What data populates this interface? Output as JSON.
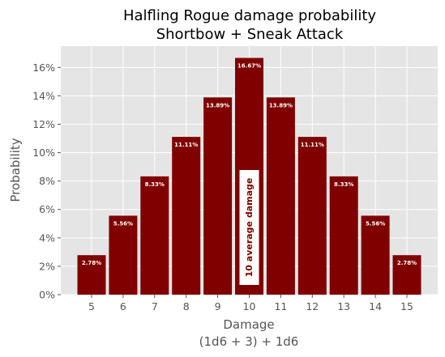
{
  "chart_data": {
    "type": "bar",
    "title": "Halfling Rogue damage probability",
    "subtitle": "Shortbow + Sneak Attack",
    "xlabel": "Damage",
    "xlabel_sub": "(1d6 + 3) + 1d6",
    "ylabel": "Probability",
    "categories": [
      "5",
      "6",
      "7",
      "8",
      "9",
      "10",
      "11",
      "12",
      "13",
      "14",
      "15"
    ],
    "values": [
      2.78,
      5.56,
      8.33,
      11.11,
      13.89,
      16.67,
      13.89,
      11.11,
      8.33,
      5.56,
      2.78
    ],
    "data_labels": [
      "2.78%",
      "5.56%",
      "8.33%",
      "11.11%",
      "13.89%",
      "16.67%",
      "13.89%",
      "11.11%",
      "8.33%",
      "5.56%",
      "2.78%"
    ],
    "y_ticks": [
      0,
      2,
      4,
      6,
      8,
      10,
      12,
      14,
      16
    ],
    "y_tick_labels": [
      "0%",
      "2%",
      "4%",
      "6%",
      "8%",
      "10%",
      "12%",
      "14%",
      "16%"
    ],
    "ylim": [
      0,
      17.5
    ],
    "grid": true,
    "annotation": {
      "text": "10 average damage",
      "x_category": "10"
    },
    "colors": {
      "bar": "#800000",
      "background": "#e5e5e5",
      "grid": "#ffffff",
      "annotation_box": "#ffffff",
      "annotation_text": "#800000"
    }
  }
}
